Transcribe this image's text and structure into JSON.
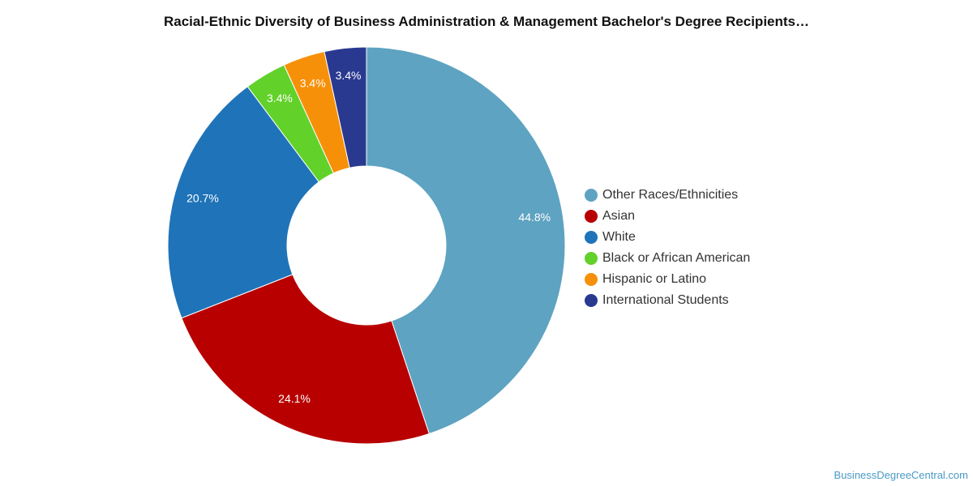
{
  "chart_data": {
    "type": "pie",
    "title": "Racial-Ethnic Diversity of Business Administration & Management Bachelor's Degree Recipients…",
    "categories": [
      "Other Races/Ethnicities",
      "Asian",
      "White",
      "Black or African American",
      "Hispanic or Latino",
      "International Students"
    ],
    "values": [
      44.8,
      24.1,
      20.7,
      3.4,
      3.4,
      3.4
    ],
    "value_labels": [
      "44.8%",
      "24.1%",
      "20.7%",
      "3.4%",
      "3.4%",
      "3.4%"
    ],
    "colors": [
      "#5ea3c1",
      "#b80000",
      "#1f73b8",
      "#62d12a",
      "#f79009",
      "#2a3990"
    ],
    "donut": true,
    "legend_position": "right"
  },
  "source": "BusinessDegreeCentral.com"
}
